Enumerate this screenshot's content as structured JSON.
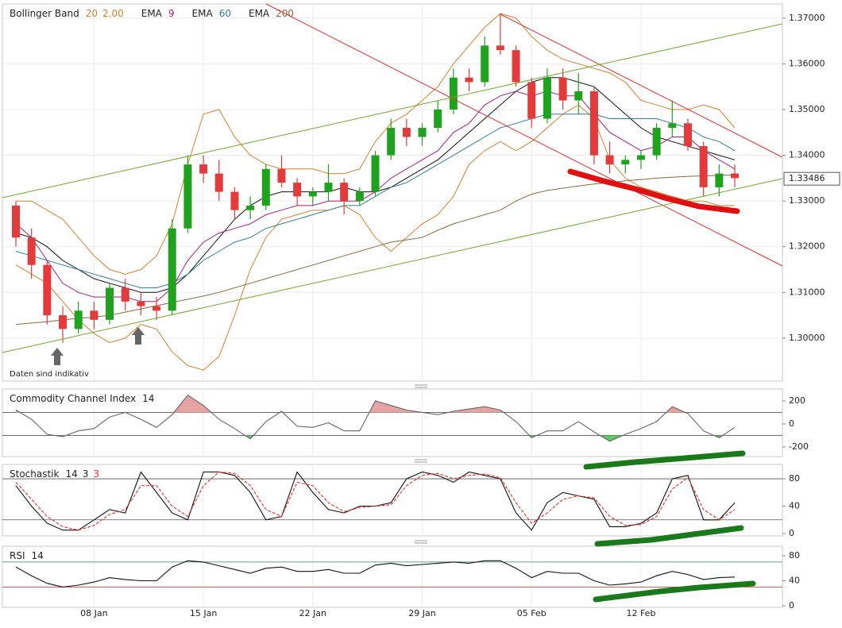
{
  "chart_data": [
    {
      "type": "candlestick",
      "title": "Bollinger Band",
      "note": "Daten sind indikativ",
      "categories": [
        null,
        null,
        null,
        null,
        null,
        "08 Jan",
        null,
        null,
        null,
        null,
        null,
        null,
        "15 Jan",
        null,
        null,
        null,
        null,
        null,
        null,
        "22 Jan",
        null,
        null,
        null,
        null,
        null,
        null,
        "29 Jan",
        null,
        null,
        null,
        null,
        null,
        null,
        "05 Feb",
        null,
        null,
        null,
        null,
        null,
        null,
        "12 Feb",
        null,
        null,
        null,
        null,
        null,
        null
      ],
      "open": [
        1.329,
        1.322,
        1.316,
        1.305,
        1.302,
        1.306,
        1.304,
        1.311,
        1.308,
        1.307,
        1.306,
        1.324,
        1.338,
        1.336,
        1.332,
        1.328,
        1.329,
        1.337,
        1.334,
        1.331,
        1.332,
        1.334,
        1.33,
        1.332,
        1.34,
        1.346,
        1.344,
        1.346,
        1.35,
        1.357,
        1.356,
        1.364,
        1.363,
        1.356,
        1.348,
        1.357,
        1.352,
        1.354,
        1.34,
        1.338,
        1.339,
        1.34,
        1.346,
        1.347,
        1.342,
        1.333,
        1.336
      ],
      "high": [
        1.33,
        1.324,
        1.317,
        1.307,
        1.308,
        1.308,
        1.312,
        1.313,
        1.31,
        1.309,
        1.326,
        1.34,
        1.34,
        1.339,
        1.333,
        1.331,
        1.338,
        1.34,
        1.335,
        1.333,
        1.338,
        1.335,
        1.333,
        1.341,
        1.348,
        1.348,
        1.347,
        1.352,
        1.359,
        1.359,
        1.366,
        1.371,
        1.364,
        1.357,
        1.359,
        1.359,
        1.358,
        1.355,
        1.343,
        1.34,
        1.341,
        1.347,
        1.352,
        1.348,
        1.343,
        1.338,
        1.338
      ],
      "low": [
        1.32,
        1.313,
        1.303,
        1.299,
        1.301,
        1.302,
        1.303,
        1.306,
        1.305,
        1.304,
        1.305,
        1.323,
        1.334,
        1.33,
        1.326,
        1.326,
        1.328,
        1.333,
        1.329,
        1.329,
        1.33,
        1.327,
        1.329,
        1.331,
        1.339,
        1.342,
        1.342,
        1.345,
        1.349,
        1.354,
        1.355,
        1.362,
        1.355,
        1.346,
        1.347,
        1.35,
        1.349,
        1.338,
        1.336,
        1.336,
        1.337,
        1.339,
        1.344,
        1.341,
        1.331,
        1.331,
        1.333
      ],
      "close": [
        1.322,
        1.316,
        1.305,
        1.302,
        1.306,
        1.304,
        1.311,
        1.308,
        1.307,
        1.306,
        1.324,
        1.338,
        1.336,
        1.332,
        1.328,
        1.329,
        1.337,
        1.334,
        1.331,
        1.332,
        1.334,
        1.33,
        1.332,
        1.34,
        1.346,
        1.344,
        1.346,
        1.35,
        1.357,
        1.356,
        1.364,
        1.363,
        1.356,
        1.348,
        1.357,
        1.352,
        1.354,
        1.34,
        1.338,
        1.339,
        1.34,
        1.346,
        1.347,
        1.342,
        1.333,
        1.336,
        1.335
      ],
      "up_color": "#1fa31f",
      "down_color": "#e33b3b",
      "last_price": {
        "value": 1.33486,
        "label": "1.33486"
      },
      "ylim": [
        1.2906,
        1.3731
      ],
      "grid": true,
      "yticks": [
        {
          "value": 1.3,
          "label": "1.30000"
        },
        {
          "value": 1.31,
          "label": "1.31000"
        },
        {
          "value": 1.32,
          "label": "1.32000"
        },
        {
          "value": 1.33,
          "label": "1.33000"
        },
        {
          "value": 1.34,
          "label": "1.34000"
        },
        {
          "value": 1.35,
          "label": "1.35000"
        },
        {
          "value": 1.36,
          "label": "1.36000"
        },
        {
          "value": 1.37,
          "label": "1.37000"
        }
      ],
      "bollinger": {
        "params": [
          "20",
          "2.00"
        ],
        "color": "#d4832e",
        "middle_color": "#111111",
        "upper": [
          1.33,
          1.33,
          1.328,
          1.326,
          1.322,
          1.318,
          1.315,
          1.314,
          1.315,
          1.318,
          1.325,
          1.338,
          1.349,
          1.35,
          1.344,
          1.34,
          1.338,
          1.337,
          1.337,
          1.337,
          1.336,
          1.336,
          1.337,
          1.343,
          1.347,
          1.349,
          1.352,
          1.355,
          1.36,
          1.364,
          1.368,
          1.371,
          1.37,
          1.366,
          1.363,
          1.361,
          1.36,
          1.359,
          1.358,
          1.356,
          1.352,
          1.351,
          1.35,
          1.35,
          1.351,
          1.35,
          1.346
        ],
        "middle": [
          1.323,
          1.322,
          1.32,
          1.317,
          1.315,
          1.313,
          1.312,
          1.311,
          1.31,
          1.31,
          1.311,
          1.314,
          1.318,
          1.322,
          1.326,
          1.329,
          1.331,
          1.332,
          1.332,
          1.332,
          1.332,
          1.333,
          1.332,
          1.332,
          1.333,
          1.335,
          1.337,
          1.339,
          1.342,
          1.345,
          1.348,
          1.351,
          1.354,
          1.356,
          1.357,
          1.357,
          1.356,
          1.355,
          1.352,
          1.349,
          1.346,
          1.344,
          1.343,
          1.342,
          1.341,
          1.34,
          1.339
        ],
        "lower": [
          1.316,
          1.314,
          1.312,
          1.308,
          1.304,
          1.301,
          1.299,
          1.3,
          1.303,
          1.302,
          1.297,
          1.294,
          1.293,
          1.296,
          1.305,
          1.315,
          1.322,
          1.326,
          1.327,
          1.328,
          1.328,
          1.329,
          1.327,
          1.322,
          1.319,
          1.322,
          1.325,
          1.327,
          1.331,
          1.338,
          1.341,
          1.343,
          1.341,
          1.343,
          1.346,
          1.349,
          1.351,
          1.348,
          1.339,
          1.335,
          1.333,
          1.332,
          1.331,
          1.33,
          1.33,
          1.329,
          1.329
        ]
      },
      "series": [
        {
          "name": "EMA",
          "params": [
            "9"
          ],
          "color": "#a3207a",
          "values": [
            1.325,
            1.322,
            1.317,
            1.312,
            1.31,
            1.309,
            1.309,
            1.309,
            1.308,
            1.308,
            1.311,
            1.317,
            1.321,
            1.323,
            1.324,
            1.325,
            1.327,
            1.328,
            1.329,
            1.329,
            1.33,
            1.33,
            1.33,
            1.332,
            1.335,
            1.337,
            1.339,
            1.341,
            1.345,
            1.347,
            1.351,
            1.353,
            1.354,
            1.353,
            1.354,
            1.353,
            1.353,
            1.349,
            1.345,
            1.343,
            1.341,
            1.342,
            1.344,
            1.344,
            1.341,
            1.339,
            1.337
          ]
        },
        {
          "name": "EMA",
          "params": [
            "60"
          ],
          "color": "#2a8097",
          "values": [
            1.319,
            1.318,
            1.317,
            1.316,
            1.315,
            1.314,
            1.313,
            1.312,
            1.311,
            1.311,
            1.312,
            1.314,
            1.317,
            1.319,
            1.321,
            1.322,
            1.324,
            1.325,
            1.326,
            1.327,
            1.328,
            1.329,
            1.329,
            1.331,
            1.333,
            1.334,
            1.336,
            1.338,
            1.34,
            1.342,
            1.344,
            1.346,
            1.347,
            1.348,
            1.349,
            1.349,
            1.349,
            1.349,
            1.348,
            1.348,
            1.348,
            1.348,
            1.347,
            1.346,
            1.344,
            1.343,
            1.341
          ]
        },
        {
          "name": "EMA",
          "params": [
            "200"
          ],
          "color": "#8a6a3c",
          "values": [
            1.303,
            1.3033,
            1.3036,
            1.304,
            1.3043,
            1.3046,
            1.305,
            1.3057,
            1.3064,
            1.3071,
            1.3078,
            1.3085,
            1.3092,
            1.31,
            1.311,
            1.312,
            1.313,
            1.314,
            1.315,
            1.316,
            1.317,
            1.318,
            1.319,
            1.32,
            1.321,
            1.3215,
            1.322,
            1.3236,
            1.325,
            1.326,
            1.327,
            1.328,
            1.33,
            1.3315,
            1.3323,
            1.3328,
            1.3333,
            1.3337,
            1.334,
            1.3344,
            1.3347,
            1.335,
            1.3352,
            1.3354,
            1.3355,
            1.3356,
            1.3357
          ]
        }
      ]
    },
    {
      "type": "line",
      "title": "Commodity Channel Index",
      "params": [
        "14"
      ],
      "param_colors": [
        "#222222"
      ],
      "ylim": [
        -283,
        303
      ],
      "yticks": [
        -200,
        0,
        200
      ],
      "grid": false,
      "levels": [
        100,
        -100
      ],
      "level_colors": [
        "#555555",
        "#555555"
      ],
      "fill": true,
      "fill_above_color": "#e6a3a3",
      "fill_below_color": "#5ec95e",
      "series": [
        {
          "color": "#666666",
          "values": [
            120,
            40,
            -90,
            -110,
            -60,
            -40,
            60,
            100,
            40,
            -30,
            80,
            250,
            160,
            40,
            -40,
            -130,
            20,
            110,
            -20,
            -30,
            10,
            -60,
            -60,
            200,
            160,
            120,
            100,
            80,
            110,
            130,
            150,
            120,
            20,
            -120,
            -60,
            -60,
            20,
            -70,
            -150,
            -90,
            -40,
            20,
            150,
            90,
            -60,
            -120,
            -30
          ]
        }
      ]
    },
    {
      "type": "line",
      "title": "Stochastik",
      "params": [
        "14",
        "3",
        "3"
      ],
      "param_colors": [
        "#222222",
        "#222222",
        "#e03030"
      ],
      "ylim": [
        -3.5,
        101
      ],
      "yticks": [
        0,
        40,
        80
      ],
      "grid": false,
      "levels": [
        80,
        20
      ],
      "level_colors": [
        "#555555",
        "#555555"
      ],
      "series": [
        {
          "color": "#111111",
          "values": [
            70,
            40,
            15,
            5,
            5,
            20,
            35,
            30,
            90,
            60,
            30,
            20,
            90,
            90,
            85,
            60,
            20,
            25,
            90,
            60,
            35,
            30,
            40,
            40,
            45,
            80,
            90,
            85,
            75,
            90,
            85,
            80,
            30,
            5,
            45,
            60,
            55,
            50,
            10,
            10,
            15,
            30,
            80,
            85,
            20,
            20,
            45
          ]
        },
        {
          "color": "#e03030",
          "dash": true,
          "values": [
            75,
            50,
            25,
            10,
            5,
            12,
            28,
            35,
            70,
            70,
            40,
            25,
            70,
            90,
            88,
            70,
            35,
            25,
            75,
            70,
            45,
            32,
            38,
            40,
            42,
            70,
            85,
            88,
            80,
            85,
            87,
            82,
            45,
            15,
            30,
            50,
            55,
            52,
            25,
            12,
            13,
            25,
            65,
            82,
            35,
            20,
            35
          ]
        }
      ]
    },
    {
      "type": "line",
      "title": "RSI",
      "params": [
        "14"
      ],
      "param_colors": [
        "#222222"
      ],
      "ylim": [
        -2.5,
        95.2
      ],
      "yticks": [
        0,
        40,
        80
      ],
      "grid": false,
      "levels": [
        70,
        30
      ],
      "level_colors": [
        "#2a8097",
        "#d42a2a"
      ],
      "series": [
        {
          "color": "#111111",
          "values": [
            62,
            48,
            36,
            30,
            33,
            38,
            45,
            42,
            40,
            40,
            62,
            72,
            70,
            64,
            58,
            52,
            60,
            62,
            55,
            55,
            58,
            52,
            52,
            65,
            68,
            64,
            66,
            68,
            70,
            68,
            72,
            72,
            60,
            45,
            55,
            52,
            52,
            40,
            33,
            35,
            38,
            48,
            55,
            50,
            42,
            45,
            46
          ]
        }
      ]
    }
  ]
}
